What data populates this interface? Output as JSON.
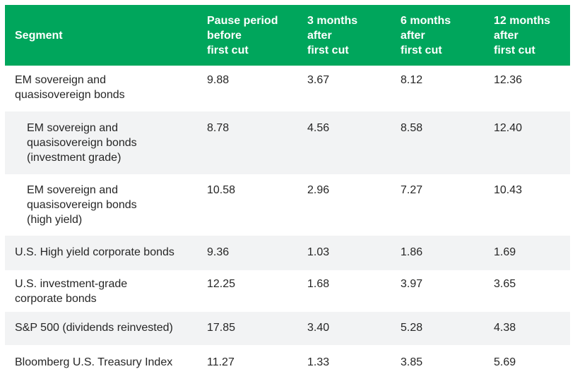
{
  "table": {
    "colors": {
      "accent": "#00a65c",
      "stripe": "#f2f3f4",
      "text": "#262626",
      "header_text": "#ffffff",
      "background": "#ffffff"
    },
    "columns": [
      {
        "label": "Segment"
      },
      {
        "label": "Pause period\nbefore\nfirst cut"
      },
      {
        "label": "3 months\nafter\nfirst cut"
      },
      {
        "label": "6 months\nafter\nfirst cut"
      },
      {
        "label": "12 months\nafter\nfirst cut"
      }
    ],
    "rows": [
      {
        "segment": "EM sovereign and\nquasisovereign bonds",
        "indented": false,
        "values": [
          "9.88",
          "3.67",
          "8.12",
          "12.36"
        ]
      },
      {
        "segment": "EM sovereign and\nquasisovereign bonds\n(investment grade)",
        "indented": true,
        "values": [
          "8.78",
          "4.56",
          "8.58",
          "12.40"
        ]
      },
      {
        "segment": "EM sovereign and\nquasisovereign bonds\n(high yield)",
        "indented": true,
        "values": [
          "10.58",
          "2.96",
          "7.27",
          "10.43"
        ]
      },
      {
        "segment": "U.S. High yield corporate bonds",
        "indented": false,
        "values": [
          "9.36",
          "1.03",
          "1.86",
          "1.69"
        ]
      },
      {
        "segment": "U.S. investment-grade\ncorporate bonds",
        "indented": false,
        "values": [
          "12.25",
          "1.68",
          "3.97",
          "3.65"
        ]
      },
      {
        "segment": "S&P 500 (dividends reinvested)",
        "indented": false,
        "values": [
          "17.85",
          "3.40",
          "5.28",
          "4.38"
        ]
      },
      {
        "segment": "Bloomberg U.S. Treasury Index",
        "indented": false,
        "values": [
          "11.27",
          "1.33",
          "3.85",
          "5.69"
        ]
      }
    ]
  },
  "chart_data": {
    "type": "table",
    "columns": [
      "Segment",
      "Pause period before first cut",
      "3 months after first cut",
      "6 months after first cut",
      "12 months after first cut"
    ],
    "series": [
      {
        "name": "EM sovereign and quasisovereign bonds",
        "values": [
          9.88,
          3.67,
          8.12,
          12.36
        ]
      },
      {
        "name": "EM sovereign and quasisovereign bonds (investment grade)",
        "values": [
          8.78,
          4.56,
          8.58,
          12.4
        ]
      },
      {
        "name": "EM sovereign and quasisovereign bonds (high yield)",
        "values": [
          10.58,
          2.96,
          7.27,
          10.43
        ]
      },
      {
        "name": "U.S. High yield corporate bonds",
        "values": [
          9.36,
          1.03,
          1.86,
          1.69
        ]
      },
      {
        "name": "U.S. investment-grade corporate bonds",
        "values": [
          12.25,
          1.68,
          3.97,
          3.65
        ]
      },
      {
        "name": "S&P 500 (dividends reinvested)",
        "values": [
          17.85,
          3.4,
          5.28,
          4.38
        ]
      },
      {
        "name": "Bloomberg U.S. Treasury Index",
        "values": [
          11.27,
          1.33,
          3.85,
          5.69
        ]
      }
    ]
  }
}
